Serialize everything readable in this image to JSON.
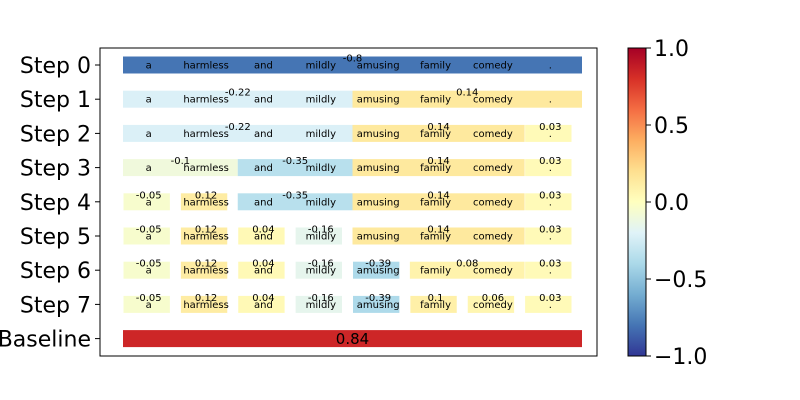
{
  "chart_data": {
    "type": "heatmap",
    "title": "",
    "xlabel": "",
    "ylabel": "",
    "tokens": [
      "a",
      "harmless",
      "and",
      "mildly",
      "amusing",
      "family",
      "comedy",
      "."
    ],
    "rows": [
      {
        "label": "Step 0",
        "segments": [
          {
            "start": 0,
            "end": 8,
            "value": -0.8,
            "label": "-0.8"
          }
        ]
      },
      {
        "label": "Step 1",
        "segments": [
          {
            "start": 0,
            "end": 4,
            "value": -0.22,
            "label": "-0.22"
          },
          {
            "start": 4,
            "end": 8,
            "value": 0.14,
            "label": "0.14"
          }
        ]
      },
      {
        "label": "Step 2",
        "segments": [
          {
            "start": 0,
            "end": 4,
            "value": -0.22,
            "label": "-0.22"
          },
          {
            "start": 4,
            "end": 7,
            "value": 0.14,
            "label": "0.14"
          },
          {
            "start": 7,
            "end": 8,
            "value": 0.03,
            "label": "0.03"
          }
        ]
      },
      {
        "label": "Step 3",
        "segments": [
          {
            "start": 0,
            "end": 2,
            "value": -0.1,
            "label": "-0.1"
          },
          {
            "start": 2,
            "end": 4,
            "value": -0.35,
            "label": "-0.35"
          },
          {
            "start": 4,
            "end": 7,
            "value": 0.14,
            "label": "0.14"
          },
          {
            "start": 7,
            "end": 8,
            "value": 0.03,
            "label": "0.03"
          }
        ]
      },
      {
        "label": "Step 4",
        "segments": [
          {
            "start": 0,
            "end": 1,
            "value": -0.05,
            "label": "-0.05"
          },
          {
            "start": 1,
            "end": 2,
            "value": 0.12,
            "label": "0.12"
          },
          {
            "start": 2,
            "end": 4,
            "value": -0.35,
            "label": "-0.35"
          },
          {
            "start": 4,
            "end": 7,
            "value": 0.14,
            "label": "0.14"
          },
          {
            "start": 7,
            "end": 8,
            "value": 0.03,
            "label": "0.03"
          }
        ]
      },
      {
        "label": "Step 5",
        "segments": [
          {
            "start": 0,
            "end": 1,
            "value": -0.05,
            "label": "-0.05"
          },
          {
            "start": 1,
            "end": 2,
            "value": 0.12,
            "label": "0.12"
          },
          {
            "start": 2,
            "end": 3,
            "value": 0.04,
            "label": "0.04"
          },
          {
            "start": 3,
            "end": 4,
            "value": -0.16,
            "label": "-0.16"
          },
          {
            "start": 4,
            "end": 7,
            "value": 0.14,
            "label": "0.14"
          },
          {
            "start": 7,
            "end": 8,
            "value": 0.03,
            "label": "0.03"
          }
        ]
      },
      {
        "label": "Step 6",
        "segments": [
          {
            "start": 0,
            "end": 1,
            "value": -0.05,
            "label": "-0.05"
          },
          {
            "start": 1,
            "end": 2,
            "value": 0.12,
            "label": "0.12"
          },
          {
            "start": 2,
            "end": 3,
            "value": 0.04,
            "label": "0.04"
          },
          {
            "start": 3,
            "end": 4,
            "value": -0.16,
            "label": "-0.16"
          },
          {
            "start": 4,
            "end": 5,
            "value": -0.39,
            "label": "-0.39"
          },
          {
            "start": 5,
            "end": 7,
            "value": 0.08,
            "label": "0.08"
          },
          {
            "start": 7,
            "end": 8,
            "value": 0.03,
            "label": "0.03"
          }
        ]
      },
      {
        "label": "Step 7",
        "segments": [
          {
            "start": 0,
            "end": 1,
            "value": -0.05,
            "label": "-0.05"
          },
          {
            "start": 1,
            "end": 2,
            "value": 0.12,
            "label": "0.12"
          },
          {
            "start": 2,
            "end": 3,
            "value": 0.04,
            "label": "0.04"
          },
          {
            "start": 3,
            "end": 4,
            "value": -0.16,
            "label": "-0.16"
          },
          {
            "start": 4,
            "end": 5,
            "value": -0.39,
            "label": "-0.39"
          },
          {
            "start": 5,
            "end": 6,
            "value": 0.1,
            "label": "0.1"
          },
          {
            "start": 6,
            "end": 7,
            "value": 0.06,
            "label": "0.06"
          },
          {
            "start": 7,
            "end": 8,
            "value": 0.03,
            "label": "0.03"
          }
        ]
      }
    ],
    "baseline": {
      "label": "Baseline",
      "value": 0.84,
      "display": "0.84"
    },
    "colorbar": {
      "colormap": "RdYlBu_r",
      "range": [
        -1.0,
        1.0
      ],
      "ticks": [
        1.0,
        0.5,
        0.0,
        -0.5,
        -1.0
      ],
      "tick_labels": [
        "1.0",
        "0.5",
        "0.0",
        "−0.5",
        "−1.0"
      ]
    },
    "grid": false,
    "legend": "none"
  }
}
